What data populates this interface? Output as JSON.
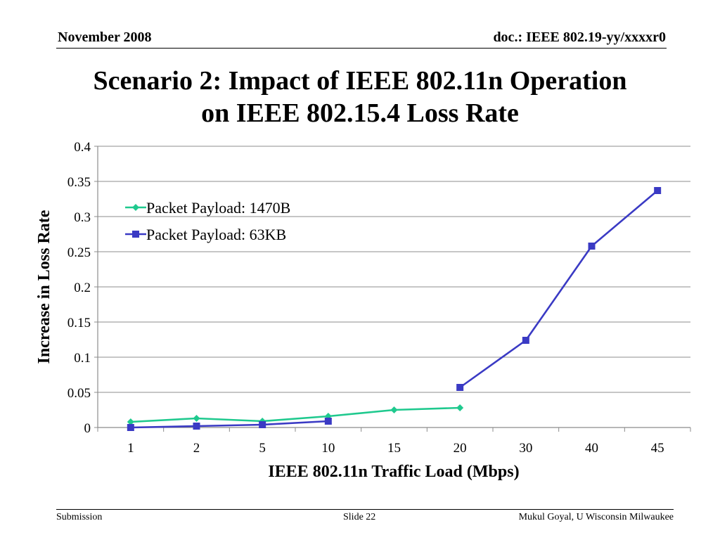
{
  "header": {
    "date": "November 2008",
    "doc_id": "doc.: IEEE 802.19-yy/xxxxr0"
  },
  "slide_title": {
    "line1": "Scenario 2: Impact of IEEE 802.11n Operation",
    "line2": "on IEEE 802.15.4 Loss Rate"
  },
  "footer": {
    "left": "Submission",
    "center": "Slide 22",
    "right": "Mukul Goyal, U Wisconsin Milwaukee"
  },
  "chart_data": {
    "type": "line",
    "title": "",
    "xlabel": "IEEE 802.11n Traffic Load (Mbps)",
    "ylabel": "Increase in Loss Rate",
    "categories": [
      "1",
      "2",
      "5",
      "10",
      "15",
      "20",
      "30",
      "40",
      "45"
    ],
    "ylim": [
      0,
      0.4
    ],
    "yticks": [
      "0",
      "0.05",
      "0.1",
      "0.15",
      "0.2",
      "0.25",
      "0.3",
      "0.35",
      "0.4"
    ],
    "grid": true,
    "legend_position": "top-left",
    "series": [
      {
        "name": "Packet Payload: 1470B",
        "color": "#1fc98e",
        "marker": "diamond",
        "values": [
          0.008,
          0.013,
          0.009,
          0.016,
          0.025,
          0.028,
          null,
          null,
          null
        ]
      },
      {
        "name": "Packet Payload: 63KB",
        "color": "#3a3ac4",
        "marker": "square",
        "segments": [
          [
            0,
            3
          ],
          [
            5,
            8
          ]
        ],
        "values": [
          0.0,
          0.002,
          0.004,
          0.009,
          null,
          0.057,
          0.124,
          0.258,
          0.337
        ]
      }
    ]
  }
}
